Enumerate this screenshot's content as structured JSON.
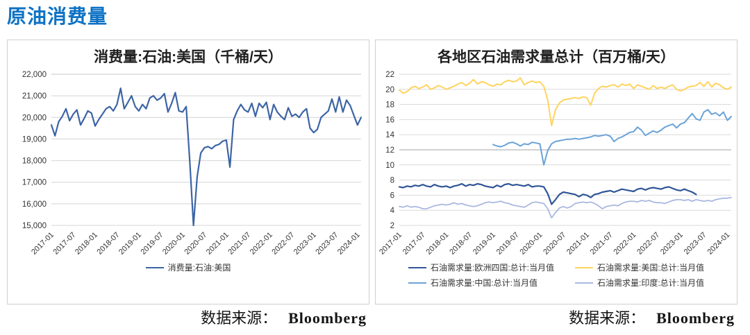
{
  "page": {
    "title": "原油消费量"
  },
  "sources": [
    {
      "label": "数据来源：",
      "value": "Bloomberg"
    },
    {
      "label": "数据来源：",
      "value": "Bloomberg"
    }
  ],
  "chart_data": [
    {
      "type": "line",
      "title": "消费量:石油:美国（千桶/天）",
      "x_start": "2017-01",
      "x_freq": "monthly",
      "x_tick_labels": [
        "2017-01",
        "2017-07",
        "2018-01",
        "2018-07",
        "2019-01",
        "2019-07",
        "2020-01",
        "2020-07",
        "2021-01",
        "2021-07",
        "2022-01",
        "2022-07",
        "2023-01",
        "2023-07",
        "2024-01"
      ],
      "x_tick_indices": [
        0,
        6,
        12,
        18,
        24,
        30,
        36,
        42,
        48,
        54,
        60,
        66,
        72,
        78,
        84
      ],
      "ylim": [
        15000,
        22000
      ],
      "ytick_step": 1000,
      "y_format": "comma",
      "grid": true,
      "legend_position": "bottom",
      "series": [
        {
          "name": "消费量:石油:美国",
          "color": "#3c64a5",
          "values": [
            19650,
            19150,
            19800,
            20050,
            20400,
            19850,
            20150,
            20350,
            19650,
            19950,
            20300,
            20200,
            19600,
            19900,
            20150,
            20400,
            20500,
            20300,
            20600,
            21350,
            20400,
            20700,
            21000,
            20500,
            20300,
            20600,
            20400,
            20900,
            21000,
            20800,
            20900,
            21100,
            20250,
            20650,
            21150,
            20300,
            20250,
            20500,
            17900,
            15000,
            17250,
            18350,
            18600,
            18650,
            18550,
            18700,
            18750,
            18900,
            18950,
            17700,
            19900,
            20300,
            20600,
            20350,
            20250,
            20650,
            20050,
            20650,
            20450,
            20700,
            19900,
            20600,
            20250,
            20050,
            19900,
            20450,
            20050,
            20150,
            20000,
            20250,
            20400,
            19500,
            19300,
            19450,
            20000,
            20150,
            20300,
            20850,
            20250,
            20950,
            20250,
            20800,
            20550,
            20100,
            19650,
            20000
          ]
        }
      ]
    },
    {
      "type": "line",
      "title": "各地区石油需求量总计（百万桶/天）",
      "x_start": "2017-01",
      "x_freq": "monthly",
      "x_tick_labels": [
        "2017-01",
        "2017-07",
        "2018-01",
        "2018-07",
        "2019-01",
        "2019-07",
        "2020-01",
        "2020-07",
        "2021-01",
        "2021-07",
        "2022-01",
        "2022-07",
        "2023-01",
        "2023-07",
        "2024-01"
      ],
      "x_tick_indices": [
        0,
        6,
        12,
        18,
        24,
        30,
        36,
        42,
        48,
        54,
        60,
        66,
        72,
        78,
        84
      ],
      "ylim": [
        2,
        22
      ],
      "ytick_step": 2,
      "y_format": "plain",
      "grid": true,
      "dark_gridline_value": 12,
      "legend_position": "bottom",
      "series": [
        {
          "name": "石油需求量:欧洲四国:总计:当月值",
          "color": "#2f5597",
          "values": [
            7.1,
            7.0,
            7.2,
            7.1,
            7.3,
            7.2,
            7.4,
            7.2,
            7.1,
            7.4,
            7.2,
            7.1,
            7.2,
            7.0,
            7.2,
            7.3,
            7.5,
            7.2,
            7.4,
            7.3,
            7.5,
            7.4,
            7.2,
            7.1,
            7.0,
            7.3,
            7.1,
            7.4,
            7.5,
            7.3,
            7.4,
            7.3,
            7.2,
            7.4,
            7.1,
            7.2,
            7.2,
            7.1,
            6.2,
            4.8,
            5.4,
            6.1,
            6.4,
            6.3,
            6.2,
            6.1,
            5.8,
            6.1,
            6.0,
            5.7,
            6.1,
            6.2,
            6.4,
            6.5,
            6.6,
            6.4,
            6.6,
            6.8,
            6.7,
            6.6,
            6.5,
            6.8,
            6.9,
            6.7,
            6.9,
            7.0,
            6.9,
            6.8,
            7.0,
            7.1,
            6.9,
            6.7,
            6.6,
            6.8,
            6.6,
            6.4,
            6.1,
            null,
            null,
            null,
            null,
            null,
            null,
            null,
            null,
            null
          ]
        },
        {
          "name": "石油需求量:美国:总计:当月值",
          "color": "#ffd35f",
          "values": [
            19.9,
            19.5,
            19.7,
            20.2,
            20.4,
            20.1,
            20.3,
            20.6,
            20.0,
            20.2,
            20.5,
            20.3,
            20.0,
            20.2,
            20.4,
            20.7,
            20.9,
            20.5,
            20.8,
            21.3,
            20.7,
            21.0,
            20.9,
            20.6,
            20.4,
            20.7,
            20.6,
            21.0,
            21.2,
            21.0,
            21.1,
            21.5,
            20.6,
            20.9,
            21.1,
            20.9,
            21.0,
            20.4,
            18.6,
            15.2,
            17.3,
            18.2,
            18.6,
            18.7,
            18.8,
            18.9,
            18.8,
            19.0,
            18.9,
            17.9,
            19.5,
            20.1,
            20.4,
            20.3,
            20.5,
            20.6,
            20.3,
            20.7,
            20.5,
            20.7,
            20.1,
            20.6,
            20.4,
            20.2,
            20.0,
            20.5,
            20.1,
            20.3,
            20.1,
            20.4,
            20.6,
            20.0,
            19.8,
            20.0,
            20.3,
            20.4,
            20.5,
            20.9,
            20.4,
            21.0,
            20.3,
            20.8,
            20.6,
            20.2,
            20.0,
            20.3
          ]
        },
        {
          "name": "石油需求量:中国:总计:当月值",
          "color": "#6aa2d8",
          "values": [
            null,
            null,
            null,
            null,
            null,
            null,
            null,
            null,
            null,
            null,
            null,
            null,
            null,
            null,
            null,
            null,
            null,
            null,
            null,
            null,
            null,
            null,
            null,
            null,
            12.7,
            12.5,
            12.4,
            12.6,
            12.9,
            13.0,
            12.8,
            12.5,
            12.8,
            12.7,
            13.0,
            12.9,
            12.8,
            10.0,
            11.9,
            12.8,
            13.1,
            13.2,
            13.3,
            13.4,
            13.4,
            13.5,
            13.4,
            13.5,
            13.6,
            13.7,
            13.9,
            13.8,
            13.9,
            14.0,
            13.8,
            13.1,
            13.5,
            13.7,
            14.0,
            14.3,
            14.4,
            15.0,
            14.6,
            13.9,
            14.2,
            14.5,
            14.3,
            14.6,
            15.0,
            15.2,
            15.4,
            14.9,
            15.4,
            15.6,
            16.2,
            16.8,
            16.1,
            15.9,
            17.0,
            17.3,
            16.7,
            16.9,
            16.5,
            17.0,
            15.9,
            16.4
          ]
        },
        {
          "name": "石油需求量:印度:总计:当月值",
          "color": "#a9b8df",
          "values": [
            4.5,
            4.4,
            4.6,
            4.4,
            4.5,
            4.4,
            4.2,
            4.2,
            4.4,
            4.6,
            4.7,
            4.8,
            4.7,
            4.8,
            5.0,
            4.8,
            4.9,
            4.7,
            4.6,
            4.5,
            4.6,
            4.8,
            5.0,
            5.1,
            5.0,
            5.1,
            5.2,
            5.0,
            4.9,
            4.7,
            4.6,
            4.5,
            4.4,
            4.7,
            5.0,
            5.1,
            5.0,
            4.9,
            4.2,
            3.0,
            3.7,
            4.3,
            4.5,
            4.3,
            4.5,
            4.9,
            5.0,
            5.1,
            5.0,
            5.1,
            4.9,
            4.6,
            4.2,
            4.5,
            4.6,
            4.7,
            4.6,
            4.9,
            5.1,
            5.2,
            5.2,
            5.1,
            5.3,
            5.2,
            5.3,
            5.1,
            5.0,
            5.0,
            4.9,
            5.1,
            5.3,
            5.4,
            5.4,
            5.3,
            5.4,
            5.2,
            5.4,
            5.3,
            5.2,
            5.3,
            5.2,
            5.4,
            5.5,
            5.6,
            5.6,
            5.7
          ]
        }
      ]
    }
  ]
}
